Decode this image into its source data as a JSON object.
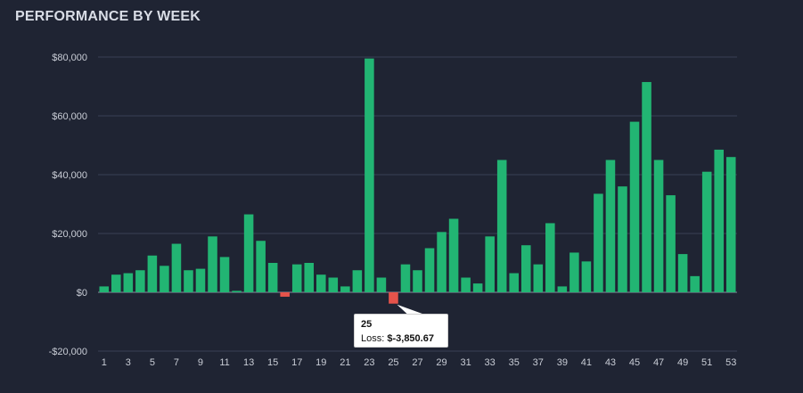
{
  "title": "PERFORMANCE BY WEEK",
  "colors": {
    "positive": "#22b573",
    "negative": "#e5534b",
    "grid": "#3a4154",
    "text": "#c9cdd6"
  },
  "tooltip": {
    "week": "25",
    "label": "Loss:",
    "value": "$-3,850.67"
  },
  "chart_data": {
    "type": "bar",
    "title": "PERFORMANCE BY WEEK",
    "xlabel": "",
    "ylabel": "",
    "ylim": [
      -20000,
      80000
    ],
    "yticks": [
      -20000,
      0,
      20000,
      40000,
      60000,
      80000
    ],
    "ytick_labels": [
      "-$20,000",
      "$0",
      "$20,000",
      "$40,000",
      "$60,000",
      "$80,000"
    ],
    "xtick_labels": [
      "1",
      "3",
      "5",
      "7",
      "9",
      "11",
      "13",
      "15",
      "17",
      "19",
      "21",
      "23",
      "25",
      "27",
      "29",
      "31",
      "33",
      "35",
      "37",
      "39",
      "41",
      "43",
      "45",
      "47",
      "49",
      "51",
      "53"
    ],
    "categories": [
      1,
      2,
      3,
      4,
      5,
      6,
      7,
      8,
      9,
      10,
      11,
      12,
      13,
      14,
      15,
      16,
      17,
      18,
      19,
      20,
      21,
      22,
      23,
      24,
      25,
      26,
      27,
      28,
      29,
      30,
      31,
      32,
      33,
      34,
      35,
      36,
      37,
      38,
      39,
      40,
      41,
      42,
      43,
      44,
      45,
      46,
      47,
      48,
      49,
      50,
      51,
      52,
      53
    ],
    "values": [
      2000,
      6000,
      6500,
      7500,
      12500,
      9000,
      16500,
      7500,
      8000,
      19000,
      12000,
      500,
      26500,
      17500,
      10000,
      -1500,
      9500,
      10000,
      6000,
      5000,
      2000,
      7500,
      79500,
      5000,
      -3850.67,
      9500,
      7500,
      15000,
      20500,
      25000,
      5000,
      3000,
      19000,
      45000,
      6500,
      16000,
      9500,
      23500,
      2000,
      13500,
      10500,
      33500,
      45000,
      36000,
      58000,
      71500,
      45000,
      33000,
      13000,
      5500,
      41000,
      48500,
      46000
    ]
  }
}
